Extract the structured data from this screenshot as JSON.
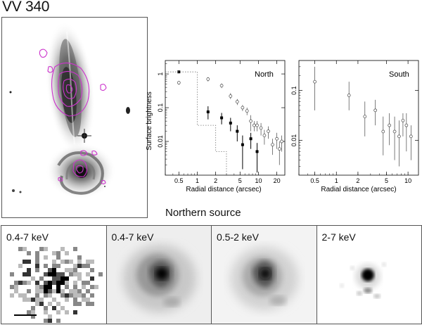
{
  "title": "VV 340",
  "subtitle": "Northern source",
  "colors": {
    "contour": "#cc33cc",
    "filled": "#000000",
    "open": "#444444"
  },
  "chart_data": [
    {
      "type": "scatter",
      "panel": "North",
      "xlabel": "Radial distance (arcsec)",
      "ylabel": "Surface brightness",
      "xscale": "log",
      "yscale": "log",
      "xlim": [
        0.3,
        27
      ],
      "ylim": [
        0.001,
        2.5
      ],
      "x_ticks": [
        "0.5",
        "1",
        "2",
        "5",
        "10",
        "20"
      ],
      "y_ticks": [
        "0.01",
        "0.1",
        "1"
      ],
      "series": [
        {
          "marker": "filled-square",
          "points": [
            {
              "x": 0.5,
              "y": 1.15,
              "lo": 1.05,
              "hi": 1.25
            },
            {
              "x": 1.5,
              "y": 0.075,
              "lo": 0.045,
              "hi": 0.11
            },
            {
              "x": 2.5,
              "y": 0.05,
              "lo": 0.032,
              "hi": 0.07
            },
            {
              "x": 3.5,
              "y": 0.035,
              "lo": 0.02,
              "hi": 0.05
            },
            {
              "x": 4.5,
              "y": 0.02,
              "lo": 0.01,
              "hi": 0.03
            },
            {
              "x": 5.5,
              "y": 0.008,
              "lo": 0.0015,
              "hi": 0.015
            },
            {
              "x": 7.5,
              "y": 0.012,
              "lo": 0.006,
              "hi": 0.018
            },
            {
              "x": 9.5,
              "y": 0.005,
              "lo": 0.0012,
              "hi": 0.009
            }
          ]
        },
        {
          "marker": "open-circle",
          "points": [
            {
              "x": 0.5,
              "y": 0.55,
              "lo": 0.48,
              "hi": 0.62
            },
            {
              "x": 1.5,
              "y": 0.7,
              "lo": 0.6,
              "hi": 0.8
            },
            {
              "x": 2.5,
              "y": 0.45,
              "lo": 0.38,
              "hi": 0.52
            },
            {
              "x": 3.5,
              "y": 0.22,
              "lo": 0.18,
              "hi": 0.27
            },
            {
              "x": 4.5,
              "y": 0.15,
              "lo": 0.12,
              "hi": 0.18
            },
            {
              "x": 5.5,
              "y": 0.1,
              "lo": 0.08,
              "hi": 0.12
            },
            {
              "x": 6.5,
              "y": 0.08,
              "lo": 0.06,
              "hi": 0.1
            },
            {
              "x": 7.5,
              "y": 0.04,
              "lo": 0.02,
              "hi": 0.06
            },
            {
              "x": 8.5,
              "y": 0.03,
              "lo": 0.02,
              "hi": 0.04
            },
            {
              "x": 9.5,
              "y": 0.03,
              "lo": 0.02,
              "hi": 0.04
            },
            {
              "x": 11,
              "y": 0.025,
              "lo": 0.015,
              "hi": 0.035
            },
            {
              "x": 12.5,
              "y": 0.015,
              "lo": 0.008,
              "hi": 0.022
            },
            {
              "x": 14.5,
              "y": 0.02,
              "lo": 0.012,
              "hi": 0.028
            },
            {
              "x": 17,
              "y": 0.008,
              "lo": 0.004,
              "hi": 0.012
            },
            {
              "x": 20,
              "y": 0.012,
              "lo": 0.006,
              "hi": 0.018
            },
            {
              "x": 22,
              "y": 0.006,
              "lo": 0.002,
              "hi": 0.01
            },
            {
              "x": 24,
              "y": 0.01,
              "lo": 0.005,
              "hi": 0.015
            }
          ]
        },
        {
          "marker": "dotted-step",
          "points": [
            {
              "x": 0.3,
              "y": 1.15
            },
            {
              "x": 1.0,
              "y": 1.15
            },
            {
              "x": 1.0,
              "y": 0.03
            },
            {
              "x": 2.0,
              "y": 0.03
            },
            {
              "x": 2.0,
              "y": 0.005
            },
            {
              "x": 3.0,
              "y": 0.005
            },
            {
              "x": 3.0,
              "y": 0.001
            }
          ]
        }
      ]
    },
    {
      "type": "scatter",
      "panel": "South",
      "xlabel": "Radial distance (arcsec)",
      "ylabel": "",
      "xscale": "log",
      "yscale": "log",
      "xlim": [
        0.3,
        14
      ],
      "ylim": [
        0.002,
        0.4
      ],
      "x_ticks": [
        "0.5",
        "1",
        "2",
        "5",
        "10"
      ],
      "y_ticks": [
        "0.01",
        "0.1"
      ],
      "series": [
        {
          "marker": "open-circle",
          "points": [
            {
              "x": 0.5,
              "y": 0.15,
              "lo": 0.04,
              "hi": 0.3
            },
            {
              "x": 1.5,
              "y": 0.08,
              "lo": 0.04,
              "hi": 0.15
            },
            {
              "x": 2.5,
              "y": 0.03,
              "lo": 0.012,
              "hi": 0.06
            },
            {
              "x": 3.5,
              "y": 0.04,
              "lo": 0.02,
              "hi": 0.065
            },
            {
              "x": 4.5,
              "y": 0.015,
              "lo": 0.005,
              "hi": 0.03
            },
            {
              "x": 5.5,
              "y": 0.02,
              "lo": 0.008,
              "hi": 0.035
            },
            {
              "x": 6.5,
              "y": 0.015,
              "lo": 0.004,
              "hi": 0.03
            },
            {
              "x": 7.5,
              "y": 0.012,
              "lo": 0.003,
              "hi": 0.025
            },
            {
              "x": 8.5,
              "y": 0.025,
              "lo": 0.012,
              "hi": 0.035
            },
            {
              "x": 9.5,
              "y": 0.02,
              "lo": 0.006,
              "hi": 0.035
            },
            {
              "x": 11,
              "y": 0.012,
              "lo": 0.004,
              "hi": 0.02
            }
          ]
        }
      ]
    }
  ],
  "panels": [
    {
      "label": "0.4-7 keV",
      "style": "raw"
    },
    {
      "label": "0.4-7 keV",
      "style": "smooth-broad"
    },
    {
      "label": "0.5-2 keV",
      "style": "smooth-soft"
    },
    {
      "label": "2-7 keV",
      "style": "smooth-hard"
    }
  ]
}
